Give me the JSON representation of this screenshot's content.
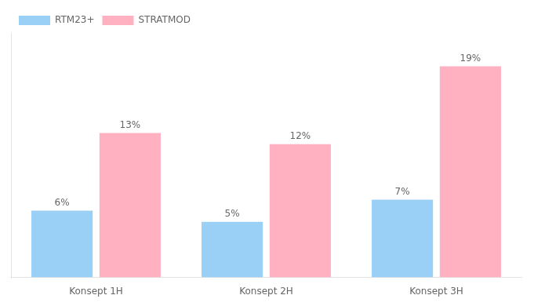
{
  "chart_data": {
    "type": "bar",
    "categories": [
      "Konsept 1H",
      "Konsept 2H",
      "Konsept 3H"
    ],
    "series": [
      {
        "name": "RTM23+",
        "values": [
          6,
          5,
          7
        ],
        "value_labels": [
          "6%",
          "5%",
          "7%"
        ]
      },
      {
        "name": "STRATMOD",
        "values": [
          13,
          12,
          19
        ],
        "value_labels": [
          "13%",
          "12%",
          "19%"
        ]
      }
    ],
    "ylim": [
      0,
      22
    ],
    "grid": false,
    "legend": "upper left",
    "data_labels": true,
    "tick_labels": "x"
  }
}
